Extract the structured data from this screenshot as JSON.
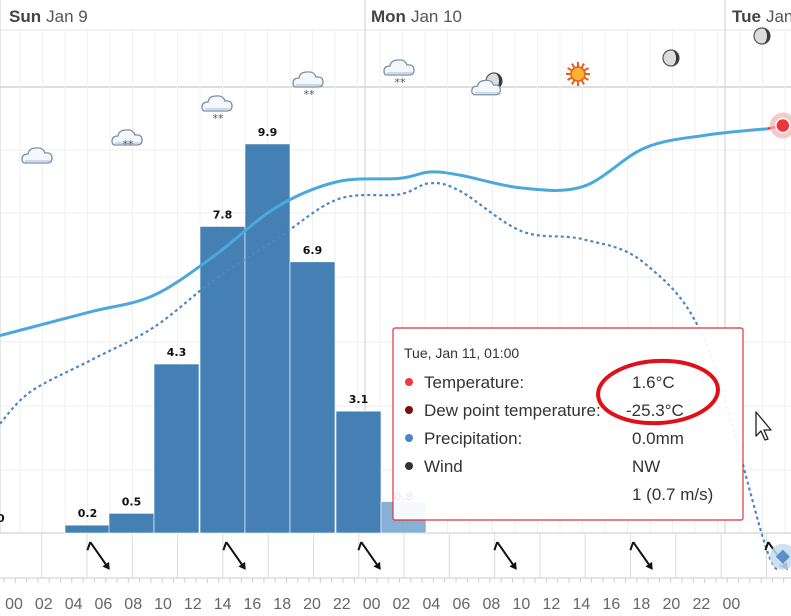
{
  "chart_data": {
    "type": "bar",
    "title": "",
    "days": [
      {
        "label_strong": "Sun",
        "label_rest": "Jan 9"
      },
      {
        "label_strong": "Mon",
        "label_rest": "Jan 10"
      },
      {
        "label_strong": "Tue",
        "label_rest": "Jan"
      }
    ],
    "x_ticks": [
      "00",
      "02",
      "04",
      "06",
      "08",
      "10",
      "12",
      "14",
      "16",
      "18",
      "20",
      "22",
      "00",
      "02",
      "04",
      "06",
      "08",
      "10",
      "12",
      "14",
      "16",
      "18",
      "20",
      "22",
      "00"
    ],
    "first_bar_label": "0",
    "precipitation": {
      "name": "Precipitation",
      "unit": "mm",
      "bars": [
        {
          "start_hour": 3,
          "value": 0.2,
          "label": "0.2"
        },
        {
          "start_hour": 6,
          "value": 0.5,
          "label": "0.5"
        },
        {
          "start_hour": 9,
          "value": 4.3,
          "label": "4.3"
        },
        {
          "start_hour": 12,
          "value": 7.8,
          "label": "7.8"
        },
        {
          "start_hour": 15,
          "value": 9.9,
          "label": "9.9"
        },
        {
          "start_hour": 18,
          "value": 6.9,
          "label": "6.9"
        },
        {
          "start_hour": 21,
          "value": 3.1,
          "label": "3.1"
        },
        {
          "start_hour": 24,
          "value": 0.8,
          "label": "0.8"
        }
      ],
      "ylim": [
        0,
        10.5
      ]
    },
    "temperature": {
      "name": "Temperature",
      "color": "#4aa8dd",
      "forecast_color": "#e8333a",
      "points": [
        [
          -2,
          -11.5
        ],
        [
          0,
          -11
        ],
        [
          4,
          -10
        ],
        [
          8,
          -9
        ],
        [
          12,
          -6.5
        ],
        [
          16,
          -3.5
        ],
        [
          20,
          -1.9
        ],
        [
          24,
          -1.7
        ],
        [
          26,
          -1.3
        ],
        [
          28,
          -1.5
        ],
        [
          32,
          -2.3
        ],
        [
          36,
          -2.2
        ],
        [
          40,
          0.2
        ],
        [
          44,
          1.0
        ],
        [
          48,
          1.4
        ],
        [
          49,
          1.6
        ]
      ],
      "forecast_from_hour": 45
    },
    "dew_point": {
      "name": "Dew point temperature",
      "color": "#4a87c5",
      "points": [
        [
          -2,
          -17
        ],
        [
          0,
          -15
        ],
        [
          4,
          -13
        ],
        [
          8,
          -11
        ],
        [
          12,
          -8
        ],
        [
          16,
          -5.5
        ],
        [
          20,
          -3
        ],
        [
          24,
          -2.7
        ],
        [
          26,
          -2
        ],
        [
          28,
          -2.5
        ],
        [
          32,
          -5
        ],
        [
          36,
          -5.5
        ],
        [
          40,
          -7
        ],
        [
          44,
          -12
        ],
        [
          48,
          -25
        ],
        [
          49,
          -25.3
        ]
      ]
    },
    "temp_axis": {
      "min": -28,
      "max": 6
    },
    "weather_icons": [
      {
        "hour": 0.5,
        "icon": "cloud-icon"
      },
      {
        "hour": 5.5,
        "icon": "cloud-snow-icon"
      },
      {
        "hour": 11.5,
        "icon": "cloud-snow-icon"
      },
      {
        "hour": 18.5,
        "icon": "cloud-snow-icon"
      },
      {
        "hour": 25,
        "icon": "cloud-snow-icon"
      },
      {
        "hour": 31,
        "icon": "cloud-moon-icon"
      },
      {
        "hour": 37,
        "icon": "sun-icon"
      },
      {
        "hour": 43,
        "icon": "moon-icon"
      },
      {
        "hour": 48.5,
        "icon": "moon-icon"
      }
    ],
    "wind_arrows": [
      {
        "hour": 5.5,
        "direction": "NW"
      },
      {
        "hour": 12,
        "direction": "NW"
      },
      {
        "hour": 18.5,
        "direction": "NW"
      },
      {
        "hour": 30.5,
        "direction": "NW"
      },
      {
        "hour": 42.5,
        "direction": "NW"
      },
      {
        "hour": 49,
        "direction": "NW"
      }
    ]
  },
  "tooltip": {
    "header": "Tue, Jan 11, 01:00",
    "rows": [
      {
        "dot_color": "#f03a3a",
        "label": "Temperature:",
        "value": "1.6°C"
      },
      {
        "dot_color": "#7a0d0d",
        "label": "Dew point temperature:",
        "value": "-25.3°C"
      },
      {
        "dot_color": "#4a87c5",
        "label": "Precipitation:",
        "value": "0.0mm"
      },
      {
        "dot_color": "#333333",
        "label": "Wind",
        "value": "NW"
      }
    ],
    "wind_speed": "1 (0.7 m/s)",
    "border_color": "#e0323a"
  },
  "annotation": {
    "shape": "ellipse",
    "color": "#e0101a"
  }
}
